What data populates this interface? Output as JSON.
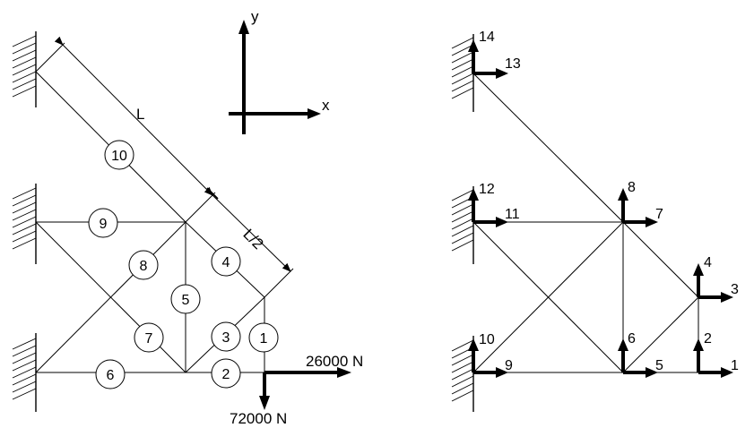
{
  "axes": {
    "x_label": "x",
    "y_label": "y"
  },
  "dimensions": {
    "L": "L",
    "L_half": "L/2"
  },
  "loads": {
    "horizontal": "26000 N",
    "vertical": "72000 N"
  },
  "element_numbers": [
    "1",
    "2",
    "3",
    "4",
    "5",
    "6",
    "7",
    "8",
    "9",
    "10"
  ],
  "dof_numbers": [
    "1",
    "2",
    "3",
    "4",
    "5",
    "6",
    "7",
    "8",
    "9",
    "10",
    "11",
    "12",
    "13",
    "14"
  ]
}
